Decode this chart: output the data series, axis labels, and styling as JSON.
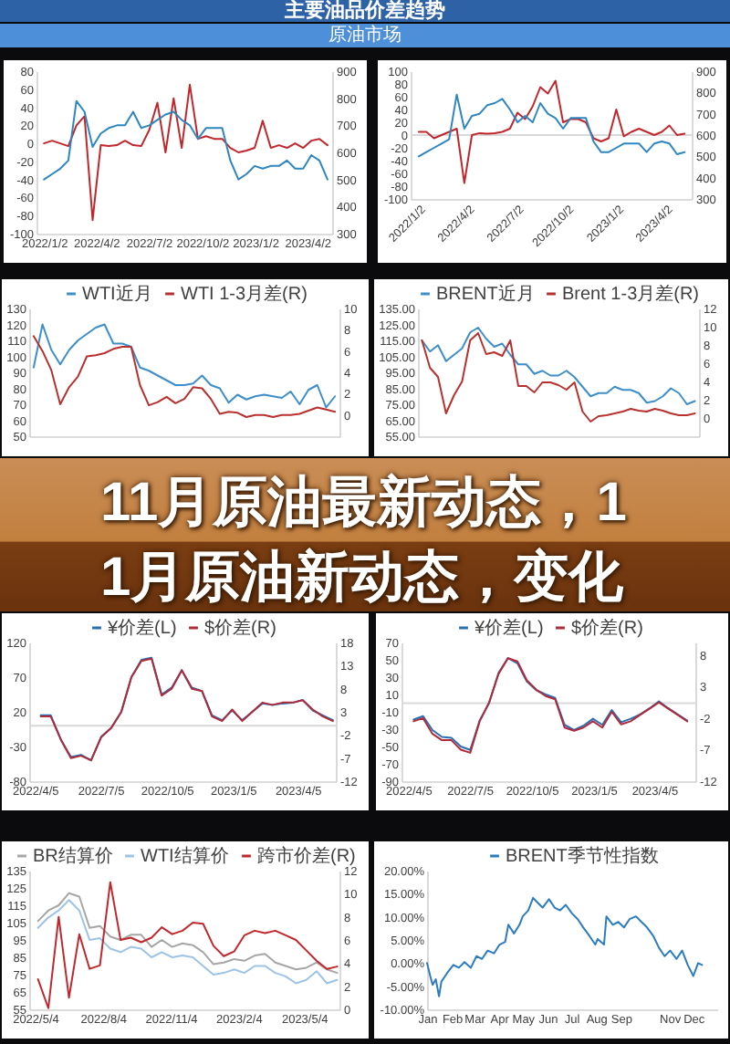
{
  "chart_data": [
    {
      "type": "other",
      "title": "主要油品价差趋势",
      "subtitle": "原油市场"
    },
    {
      "type": "line",
      "x": [
        "2022-01-02",
        "2022-01-16",
        "2022-01-30",
        "2022-02-13",
        "2022-02-27",
        "2022-03-13",
        "2022-03-27",
        "2022-04-10",
        "2022-04-24",
        "2022-05-08",
        "2022-05-22",
        "2022-06-05",
        "2022-06-19",
        "2022-07-03",
        "2022-07-17",
        "2022-07-31",
        "2022-08-14",
        "2022-08-28",
        "2022-09-11",
        "2022-09-25",
        "2022-10-09",
        "2022-10-23",
        "2022-11-06",
        "2022-11-20",
        "2022-12-04",
        "2022-12-18",
        "2023-01-01",
        "2023-01-15",
        "2023-01-29",
        "2023-02-12",
        "2023-02-26",
        "2023-03-12",
        "2023-03-26",
        "2023-04-09",
        "2023-04-23",
        "2023-05-07"
      ],
      "series": [
        {
          "color": "#c0272d",
          "values": [
            0,
            3,
            0,
            -3,
            20,
            30,
            -85,
            -2,
            -3,
            -2,
            3,
            -2,
            -3,
            15,
            45,
            -10,
            50,
            -5,
            65,
            5,
            8,
            5,
            5,
            -5,
            -10,
            -8,
            -5,
            25,
            -5,
            -2,
            -5,
            0,
            -5,
            3,
            5,
            -2
          ]
        },
        {
          "color": "#2e86c1",
          "axis": "y2",
          "values": [
            500,
            520,
            540,
            570,
            790,
            750,
            620,
            670,
            690,
            700,
            700,
            750,
            690,
            700,
            720,
            740,
            750,
            720,
            700,
            650,
            690,
            690,
            690,
            570,
            500,
            520,
            550,
            540,
            550,
            550,
            570,
            540,
            540,
            590,
            570,
            500
          ]
        }
      ],
      "xlim": [
        "2021-12-20",
        "2023-05-15"
      ],
      "xticks": [
        {
          "value": "2022-01-02",
          "label": "2022/1/2"
        },
        {
          "value": "2022-04-02",
          "label": "2022/4/2"
        },
        {
          "value": "2022-07-02",
          "label": "2022/7/2"
        },
        {
          "value": "2022-10-02",
          "label": "2022/10/2"
        },
        {
          "value": "2023-01-02",
          "label": "2023/1/2"
        },
        {
          "value": "2023-04-02",
          "label": "2023/4/2"
        }
      ],
      "ylim": [
        -100,
        80
      ],
      "yticks": [
        -100,
        -80,
        -60,
        -40,
        -20,
        0,
        20,
        40,
        60,
        80
      ],
      "y2lim": [
        300,
        900
      ],
      "y2ticks": [
        300,
        400,
        500,
        600,
        700,
        800,
        900
      ]
    },
    {
      "type": "line",
      "x": [
        "2022-01-02",
        "2022-01-16",
        "2022-01-30",
        "2022-02-13",
        "2022-02-27",
        "2022-03-13",
        "2022-03-27",
        "2022-04-10",
        "2022-04-24",
        "2022-05-08",
        "2022-05-22",
        "2022-06-05",
        "2022-06-19",
        "2022-07-03",
        "2022-07-17",
        "2022-07-31",
        "2022-08-14",
        "2022-08-28",
        "2022-09-11",
        "2022-09-25",
        "2022-10-09",
        "2022-10-23",
        "2022-11-06",
        "2022-11-20",
        "2022-12-04",
        "2022-12-18",
        "2023-01-01",
        "2023-01-15",
        "2023-01-29",
        "2023-02-12",
        "2023-02-26",
        "2023-03-12",
        "2023-03-26",
        "2023-04-09",
        "2023-04-23",
        "2023-05-07"
      ],
      "series": [
        {
          "color": "#c0272d",
          "values": [
            5,
            5,
            -5,
            0,
            5,
            10,
            -75,
            0,
            3,
            2,
            3,
            5,
            10,
            35,
            25,
            45,
            75,
            65,
            85,
            20,
            25,
            25,
            20,
            -5,
            -10,
            -5,
            40,
            -2,
            5,
            10,
            5,
            0,
            5,
            15,
            0,
            2
          ]
        },
        {
          "color": "#2e86c1",
          "axis": "y2",
          "values": [
            500,
            520,
            540,
            560,
            580,
            790,
            630,
            690,
            700,
            740,
            750,
            770,
            720,
            660,
            690,
            660,
            750,
            700,
            680,
            630,
            680,
            680,
            680,
            570,
            520,
            520,
            540,
            560,
            560,
            560,
            520,
            560,
            570,
            560,
            510,
            520
          ]
        }
      ],
      "xlim": [
        "2021-12-18",
        "2023-05-20"
      ],
      "xticks": [
        {
          "value": "2022-01-02",
          "label": "2022/1/2"
        },
        {
          "value": "2022-04-02",
          "label": "2022/4/2"
        },
        {
          "value": "2022-07-02",
          "label": "2022/7/2"
        },
        {
          "value": "2022-10-02",
          "label": "2022/10/2"
        },
        {
          "value": "2023-01-02",
          "label": "2023/1/2"
        },
        {
          "value": "2023-04-02",
          "label": "2023/4/2"
        }
      ],
      "ylim": [
        -100,
        100
      ],
      "yticks": [
        -100,
        -80,
        -60,
        -40,
        -20,
        0,
        20,
        40,
        60,
        80,
        100
      ],
      "y2lim": [
        300,
        900
      ],
      "y2ticks": [
        300,
        400,
        500,
        600,
        700,
        800,
        900
      ],
      "ref_lines": [
        {
          "axis": "y",
          "value": 0,
          "color": "#d9d9d9"
        }
      ]
    },
    {
      "type": "line",
      "categories": [
        null,
        null,
        null,
        null,
        null,
        null,
        null,
        null,
        null,
        null,
        null,
        null,
        null,
        null,
        null,
        null,
        null,
        null,
        null,
        null,
        null,
        null,
        null,
        null,
        null,
        null,
        null,
        null,
        null,
        null,
        null,
        null,
        null,
        null,
        null
      ],
      "series": [
        {
          "name": "WTI近月",
          "color": "#3d8ec9",
          "values": [
            93,
            120,
            104,
            95,
            104,
            110,
            114,
            118,
            120,
            108,
            108,
            106,
            93,
            91,
            88,
            85,
            82,
            82,
            83,
            88,
            82,
            80,
            71,
            76,
            73,
            75,
            76,
            75,
            74,
            78,
            70,
            79,
            82,
            68,
            75
          ]
        },
        {
          "name": "WTI 1-3月差(R)",
          "color": "#b8312f",
          "axis": "y2",
          "values": [
            7.4,
            6.0,
            4.2,
            1.0,
            2.6,
            3.6,
            5.5,
            5.6,
            5.8,
            6.2,
            6.4,
            6.4,
            2.8,
            0.9,
            1.2,
            1.7,
            1.1,
            1.5,
            2.6,
            2.5,
            1.5,
            0.1,
            0.3,
            0.2,
            -0.2,
            0,
            0,
            -0.2,
            0,
            0,
            0.1,
            0.4,
            0.7,
            0.5,
            0.3
          ]
        }
      ],
      "ylim": [
        50,
        130
      ],
      "yticks": [
        50,
        60,
        70,
        80,
        90,
        100,
        110,
        120,
        130
      ],
      "y2lim": [
        -2,
        10
      ],
      "y2ticks": [
        0,
        2,
        4,
        6,
        8,
        10
      ],
      "legend": "top"
    },
    {
      "type": "line",
      "categories": [
        null,
        null,
        null,
        null,
        null,
        null,
        null,
        null,
        null,
        null,
        null,
        null,
        null,
        null,
        null,
        null,
        null,
        null,
        null,
        null,
        null,
        null,
        null,
        null,
        null,
        null,
        null,
        null,
        null,
        null,
        null,
        null,
        null,
        null,
        null
      ],
      "series": [
        {
          "name": "BRENT近月",
          "color": "#3d8ec9",
          "values": [
            115,
            108,
            112,
            102,
            106,
            110,
            120,
            123,
            116,
            111,
            113,
            106,
            100,
            100,
            94,
            96,
            93,
            93,
            96,
            92,
            86,
            80,
            82,
            82,
            86,
            84,
            84,
            82,
            76,
            77,
            80,
            85,
            82,
            75,
            77
          ]
        },
        {
          "name": "Brent 1-3月差(R)",
          "color": "#b8312f",
          "axis": "y2",
          "values": [
            8.5,
            5.5,
            4.5,
            0.5,
            2.5,
            4.0,
            8.5,
            9.3,
            7.0,
            7.2,
            6.8,
            8.5,
            3.5,
            3.5,
            2.8,
            3.9,
            3.9,
            3.6,
            3.1,
            3.9,
            0.7,
            -0.4,
            0.2,
            0.3,
            0.5,
            0.7,
            1.0,
            0.8,
            0.7,
            1.0,
            0.8,
            0.5,
            0.3,
            0.3,
            0.5
          ]
        }
      ],
      "ylim": [
        55,
        135
      ],
      "yticks": [
        {
          "value": 55,
          "label": "55.00"
        },
        {
          "value": 65,
          "label": "65.00"
        },
        {
          "value": 75,
          "label": "75.00"
        },
        {
          "value": 85,
          "label": "85.00"
        },
        {
          "value": 95,
          "label": "95.00"
        },
        {
          "value": 105,
          "label": "105.00"
        },
        {
          "value": 115,
          "label": "115.00"
        },
        {
          "value": 125,
          "label": "125.00"
        },
        {
          "value": 135,
          "label": "135.00"
        }
      ],
      "y2lim": [
        -2,
        12
      ],
      "y2ticks": [
        0,
        2,
        4,
        6,
        8,
        10,
        12
      ],
      "legend": "top"
    },
    {
      "type": "other",
      "title": "11月原油最新动态，11月原油新动态，变化"
    },
    {
      "type": "line",
      "x": [
        "2022-04-13",
        "2022-04-27",
        "2022-05-11",
        "2022-05-25",
        "2022-06-08",
        "2022-06-22",
        "2022-07-06",
        "2022-07-20",
        "2022-08-03",
        "2022-08-17",
        "2022-08-31",
        "2022-09-14",
        "2022-09-28",
        "2022-10-12",
        "2022-10-26",
        "2022-11-09",
        "2022-11-23",
        "2022-12-07",
        "2022-12-21",
        "2023-01-04",
        "2023-01-18",
        "2023-02-01",
        "2023-02-15",
        "2023-03-01",
        "2023-03-15",
        "2023-03-29",
        "2023-04-12",
        "2023-04-26",
        "2023-05-10",
        "2023-05-24"
      ],
      "series": [
        {
          "name": "¥价差(L)",
          "color": "#2a6fb5",
          "values": [
            15,
            15,
            -20,
            -45,
            -42,
            -50,
            -16,
            -3,
            20,
            70,
            95,
            98,
            45,
            55,
            80,
            55,
            50,
            15,
            8,
            22,
            8,
            20,
            32,
            30,
            32,
            33,
            37,
            22,
            15,
            8
          ]
        },
        {
          "name": "$价差(R)",
          "color": "#b02a3a",
          "axis": "y2",
          "values": [
            2,
            2,
            -3,
            -7,
            -6.5,
            -7.5,
            -2.5,
            -0.5,
            3,
            10.5,
            14,
            14.5,
            6.5,
            8,
            12,
            8,
            7.5,
            2,
            1,
            3.5,
            1,
            3,
            5,
            4.5,
            5,
            5,
            5.5,
            3.5,
            2,
            1
          ]
        }
      ],
      "xlim": [
        "2022-03-28",
        "2023-05-28"
      ],
      "xticks": [
        {
          "value": "2022-04-05",
          "label": "2022/4/5"
        },
        {
          "value": "2022-07-05",
          "label": "2022/7/5"
        },
        {
          "value": "2022-10-05",
          "label": "2022/10/5"
        },
        {
          "value": "2023-01-05",
          "label": "2023/1/5"
        },
        {
          "value": "2023-04-05",
          "label": "2023/4/5"
        }
      ],
      "ylim": [
        -80,
        120
      ],
      "yticks": [
        -80,
        -30,
        20,
        70,
        120
      ],
      "y2lim": [
        -12,
        18
      ],
      "y2ticks": [
        -12,
        -7,
        -2,
        3,
        8,
        13,
        18
      ],
      "ref_lines": [
        {
          "axis": "y",
          "value": 0,
          "color": "#d9d9d9"
        }
      ],
      "legend": "top"
    },
    {
      "type": "line",
      "x": [
        "2022-04-13",
        "2022-04-27",
        "2022-05-11",
        "2022-05-25",
        "2022-06-08",
        "2022-06-22",
        "2022-07-06",
        "2022-07-20",
        "2022-08-03",
        "2022-08-17",
        "2022-08-31",
        "2022-09-14",
        "2022-09-28",
        "2022-10-12",
        "2022-10-26",
        "2022-11-09",
        "2022-11-23",
        "2022-12-07",
        "2022-12-21",
        "2023-01-04",
        "2023-01-18",
        "2023-02-01",
        "2023-02-15",
        "2023-03-01",
        "2023-03-15",
        "2023-03-29",
        "2023-04-12",
        "2023-04-26",
        "2023-05-10",
        "2023-05-24"
      ],
      "series": [
        {
          "name": "¥价差(L)",
          "color": "#2a6fb5",
          "values": [
            -19,
            -15,
            -31,
            -39,
            -40,
            -50,
            -54,
            -20,
            0,
            35,
            52,
            46,
            25,
            15,
            10,
            6,
            -25,
            -31,
            -26,
            -18,
            -25,
            -8,
            -22,
            -18,
            -13,
            -6,
            2,
            -6,
            -13,
            -20
          ]
        },
        {
          "name": "$价差(R)",
          "color": "#b02a3a",
          "axis": "y2",
          "values": [
            -2.5,
            -2,
            -4.5,
            -5.5,
            -5.5,
            -7,
            -7.5,
            -2.5,
            0.5,
            5,
            7.5,
            7,
            4,
            2.5,
            1.5,
            1,
            -3.5,
            -4,
            -3.5,
            -2.5,
            -3.5,
            -1,
            -3,
            -2.5,
            -1.5,
            -0.5,
            0.5,
            -0.5,
            -1.5,
            -2.5
          ]
        }
      ],
      "xlim": [
        "2022-03-26",
        "2023-06-05"
      ],
      "xticks": [
        {
          "value": "2022-04-05",
          "label": "2022/4/5"
        },
        {
          "value": "2022-07-05",
          "label": "2022/7/5"
        },
        {
          "value": "2022-10-05",
          "label": "2022/10/5"
        },
        {
          "value": "2023-01-05",
          "label": "2023/1/5"
        },
        {
          "value": "2023-04-05",
          "label": "2023/4/5"
        }
      ],
      "ylim": [
        -90,
        70
      ],
      "yticks": [
        -90,
        -70,
        -50,
        -30,
        -10,
        10,
        30,
        50,
        70
      ],
      "y2lim": [
        -12,
        10
      ],
      "y2ticks": [
        -12,
        -7,
        -2,
        3,
        8
      ],
      "ref_lines": [
        {
          "axis": "y",
          "value": 0,
          "color": "#d9d9d9"
        }
      ],
      "legend": "top"
    },
    {
      "type": "line",
      "x": [
        "2022-05-08",
        "2022-05-22",
        "2022-06-05",
        "2022-06-19",
        "2022-07-03",
        "2022-07-17",
        "2022-07-31",
        "2022-08-14",
        "2022-08-28",
        "2022-09-11",
        "2022-09-25",
        "2022-10-09",
        "2022-10-23",
        "2022-11-06",
        "2022-11-20",
        "2022-12-04",
        "2022-12-18",
        "2023-01-01",
        "2023-01-15",
        "2023-01-29",
        "2023-02-12",
        "2023-02-26",
        "2023-03-12",
        "2023-03-26",
        "2023-04-09",
        "2023-04-23",
        "2023-05-07",
        "2023-05-21",
        "2023-06-04",
        "2023-06-18"
      ],
      "series": [
        {
          "name": "BR结算价",
          "color": "#a6a6a6",
          "values": [
            106,
            112,
            115,
            122,
            120,
            102,
            103,
            97,
            95,
            98,
            98,
            91,
            95,
            91,
            93,
            92,
            88,
            81,
            82,
            84,
            83,
            86,
            87,
            82,
            80,
            78,
            79,
            82,
            78,
            76
          ]
        },
        {
          "name": "WTI结算价",
          "color": "#9dc3e6",
          "values": [
            102,
            108,
            112,
            118,
            112,
            95,
            96,
            90,
            88,
            91,
            90,
            85,
            88,
            85,
            86,
            85,
            80,
            75,
            76,
            78,
            76,
            80,
            80,
            76,
            74,
            70,
            72,
            77,
            70,
            72
          ]
        },
        {
          "name": "跨市价差(R)",
          "color": "#c0282d",
          "axis": "y2",
          "values": [
            2.6,
            0.1,
            8.0,
            1.0,
            6.5,
            3.5,
            3.8,
            11.0,
            6.0,
            6.2,
            5.8,
            6.2,
            7.1,
            6.5,
            6.8,
            7.5,
            7.4,
            5.5,
            4.6,
            5.0,
            6.4,
            6.8,
            6.6,
            6.8,
            6.4,
            6.0,
            5.1,
            4.2,
            3.5,
            3.7
          ]
        }
      ],
      "xlim": [
        "2022-04-26",
        "2023-06-21"
      ],
      "xticks": [
        {
          "value": "2022-05-04",
          "label": "2022/5/4"
        },
        {
          "value": "2022-08-04",
          "label": "2022/8/4"
        },
        {
          "value": "2022-11-04",
          "label": "2022/11/4"
        },
        {
          "value": "2023-02-04",
          "label": "2023/2/4"
        },
        {
          "value": "2023-05-04",
          "label": "2023/5/4"
        }
      ],
      "ylim": [
        55,
        135
      ],
      "yticks": [
        55,
        65,
        75,
        85,
        95,
        105,
        115,
        125,
        135
      ],
      "y2lim": [
        0,
        12
      ],
      "y2ticks": [
        0,
        2,
        4,
        6,
        8,
        10,
        12
      ],
      "legend": "top"
    },
    {
      "type": "line",
      "x": [
        "--01-01",
        "--01-05",
        "--01-08",
        "--01-12",
        "--01-16",
        "--01-19",
        "--01-26",
        "--02-03",
        "--02-10",
        "--02-17",
        "--02-25",
        "--03-04",
        "--03-11",
        "--03-18",
        "--03-26",
        "--04-02",
        "--04-09",
        "--04-13",
        "--04-20",
        "--04-27",
        "--05-01",
        "--05-08",
        "--05-14",
        "--05-19",
        "--05-26",
        "--06-03",
        "--06-10",
        "--06-17",
        "--06-24",
        "--07-02",
        "--07-09",
        "--07-16",
        "--07-24",
        "--07-31",
        "--08-03",
        "--08-11",
        "--08-14",
        "--08-22",
        "--08-29",
        "--09-05",
        "--09-12",
        "--09-20",
        "--09-27",
        "--10-04",
        "--10-12",
        "--10-19",
        "--10-26",
        "--11-02",
        "--11-10",
        "--11-17",
        "--11-24",
        "--12-01",
        "--12-07",
        "--12-12"
      ],
      "series": [
        {
          "name": "BRENT季节性指数",
          "color": "#2b7cc0",
          "values": [
            0,
            -2.8,
            -4.7,
            -3.5,
            -7.2,
            -4,
            -2.2,
            -0.4,
            -1,
            0.2,
            -1,
            1.5,
            0.9,
            2.7,
            2.1,
            4,
            4.6,
            8.3,
            6.4,
            8.3,
            10.1,
            11.4,
            14.1,
            13.2,
            12,
            13.8,
            12,
            11.4,
            12.6,
            10.7,
            9.5,
            7.7,
            5.8,
            4,
            5.2,
            4,
            10.1,
            8.3,
            8.9,
            7.7,
            9.5,
            10.1,
            8.9,
            7.7,
            5.8,
            3.3,
            1.5,
            2.7,
            0.9,
            2.7,
            -0.4,
            -2.8,
            0,
            -0.4
          ]
        }
      ],
      "xlim": [
        "--01-01",
        "--12-31"
      ],
      "xticks": [
        {
          "value": "--01-01",
          "label": "Jan"
        },
        {
          "value": "--02-01",
          "label": "Feb"
        },
        {
          "value": "--03-01",
          "label": "Mar"
        },
        {
          "value": "--04-01",
          "label": "Apr"
        },
        {
          "value": "--05-01",
          "label": "May"
        },
        {
          "value": "--06-01",
          "label": "Jun"
        },
        {
          "value": "--07-01",
          "label": "Jul"
        },
        {
          "value": "--08-01",
          "label": "Aug"
        },
        {
          "value": "--09-01",
          "label": "Sep"
        },
        {
          "value": "--11-01",
          "label": "Nov"
        },
        {
          "value": "--12-01",
          "label": "Dec"
        }
      ],
      "ylim": [
        -10,
        20
      ],
      "yticks": [
        {
          "value": -10,
          "label": "-10.00%"
        },
        {
          "value": -5,
          "label": "-5.00%"
        },
        {
          "value": 0,
          "label": "0.00%"
        },
        {
          "value": 5,
          "label": "5.00%"
        },
        {
          "value": 10,
          "label": "10.00%"
        },
        {
          "value": 15,
          "label": "15.00%"
        },
        {
          "value": 20,
          "label": "20.00%"
        }
      ],
      "legend": "top"
    }
  ]
}
